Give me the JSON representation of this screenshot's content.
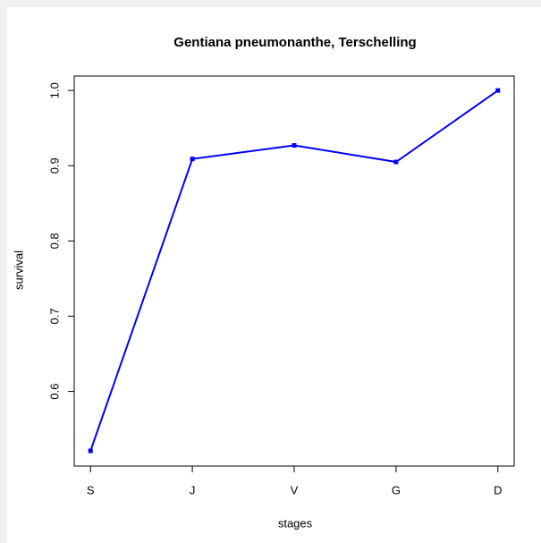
{
  "chart_data": {
    "type": "line",
    "title": "Gentiana pneumonanthe, Terschelling",
    "x_label": "stages",
    "y_label": "survival",
    "categories": [
      "S",
      "J",
      "V",
      "G",
      "D"
    ],
    "series": [
      {
        "name": "survival",
        "color": "#0000ff",
        "values": [
          0.521,
          0.909,
          0.927,
          0.905,
          1.0
        ]
      }
    ],
    "ylim": [
      0.5008,
      1.0192
    ],
    "yticks": [
      0.6,
      0.7,
      0.8,
      0.9,
      {
        "value": 1.0,
        "label": "1.0"
      }
    ]
  }
}
